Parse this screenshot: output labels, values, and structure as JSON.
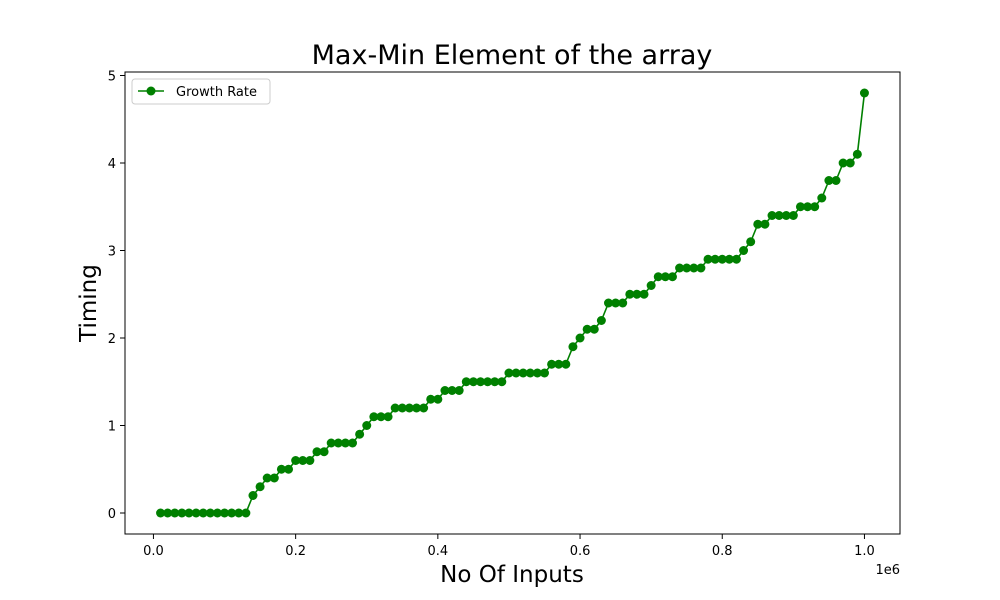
{
  "chart_data": {
    "type": "line",
    "title": "Max-Min Element of the array",
    "xlabel": "No Of Inputs",
    "ylabel": "Timing",
    "x_offset_label": "1e6",
    "xlim": [
      -40000,
      1050000
    ],
    "ylim": [
      -0.24,
      5.04
    ],
    "x_ticks": [
      0,
      200000,
      400000,
      600000,
      800000,
      1000000
    ],
    "x_tick_labels": [
      "0.0",
      "0.2",
      "0.4",
      "0.6",
      "0.8",
      "1.0"
    ],
    "y_ticks": [
      0,
      1,
      2,
      3,
      4,
      5
    ],
    "y_tick_labels": [
      "0",
      "1",
      "2",
      "3",
      "4",
      "5"
    ],
    "grid": false,
    "legend": {
      "position": "top-left"
    },
    "series": [
      {
        "name": "Growth Rate",
        "color": "#008000",
        "marker": "circle",
        "x": [
          10000,
          20000,
          30000,
          40000,
          50000,
          60000,
          70000,
          80000,
          90000,
          100000,
          110000,
          120000,
          130000,
          140000,
          150000,
          160000,
          170000,
          180000,
          190000,
          200000,
          210000,
          220000,
          230000,
          240000,
          250000,
          260000,
          270000,
          280000,
          290000,
          300000,
          310000,
          320000,
          330000,
          340000,
          350000,
          360000,
          370000,
          380000,
          390000,
          400000,
          410000,
          420000,
          430000,
          440000,
          450000,
          460000,
          470000,
          480000,
          490000,
          500000,
          510000,
          520000,
          530000,
          540000,
          550000,
          560000,
          570000,
          580000,
          590000,
          600000,
          610000,
          620000,
          630000,
          640000,
          650000,
          660000,
          670000,
          680000,
          690000,
          700000,
          710000,
          720000,
          730000,
          740000,
          750000,
          760000,
          770000,
          780000,
          790000,
          800000,
          810000,
          820000,
          830000,
          840000,
          850000,
          860000,
          870000,
          880000,
          890000,
          900000,
          910000,
          920000,
          930000,
          940000,
          950000,
          960000,
          970000,
          980000,
          990000,
          1000000
        ],
        "values": [
          0,
          0,
          0,
          0,
          0,
          0,
          0,
          0,
          0,
          0,
          0,
          0,
          0,
          0.2,
          0.3,
          0.4,
          0.4,
          0.5,
          0.5,
          0.6,
          0.6,
          0.6,
          0.7,
          0.7,
          0.8,
          0.8,
          0.8,
          0.8,
          0.9,
          1.0,
          1.1,
          1.1,
          1.1,
          1.2,
          1.2,
          1.2,
          1.2,
          1.2,
          1.3,
          1.3,
          1.4,
          1.4,
          1.4,
          1.5,
          1.5,
          1.5,
          1.5,
          1.5,
          1.5,
          1.6,
          1.6,
          1.6,
          1.6,
          1.6,
          1.6,
          1.7,
          1.7,
          1.7,
          1.9,
          2.0,
          2.1,
          2.1,
          2.2,
          2.4,
          2.4,
          2.4,
          2.5,
          2.5,
          2.5,
          2.6,
          2.7,
          2.7,
          2.7,
          2.8,
          2.8,
          2.8,
          2.8,
          2.9,
          2.9,
          2.9,
          2.9,
          2.9,
          3.0,
          3.1,
          3.3,
          3.3,
          3.4,
          3.4,
          3.4,
          3.4,
          3.5,
          3.5,
          3.5,
          3.6,
          3.8,
          3.8,
          4.0,
          4.0,
          4.1,
          4.8
        ]
      }
    ]
  }
}
